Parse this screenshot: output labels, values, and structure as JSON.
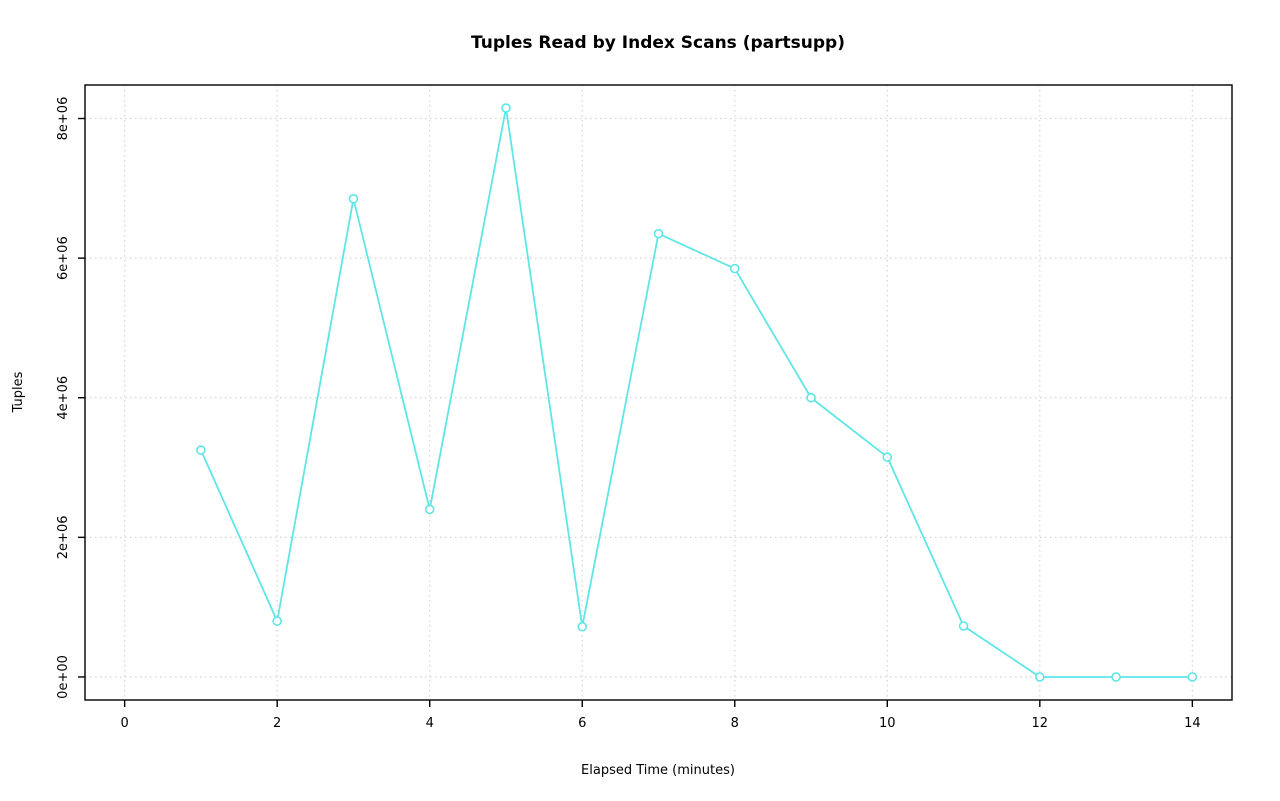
{
  "chart_data": {
    "type": "line",
    "title": "Tuples Read by Index Scans (partsupp)",
    "xlabel": "Elapsed Time (minutes)",
    "ylabel": "Tuples",
    "x": [
      1,
      2,
      3,
      4,
      5,
      6,
      7,
      8,
      9,
      10,
      11,
      12,
      13,
      14
    ],
    "y": [
      3250000,
      800000,
      6850000,
      2400000,
      8150000,
      720000,
      6350000,
      5850000,
      4000000,
      3150000,
      730000,
      0,
      0,
      0
    ],
    "x_ticks": [
      0,
      2,
      4,
      6,
      8,
      10,
      12,
      14
    ],
    "x_tick_labels": [
      "0",
      "2",
      "4",
      "6",
      "8",
      "10",
      "12",
      "14"
    ],
    "y_ticks": [
      0,
      2000000,
      4000000,
      6000000,
      8000000
    ],
    "y_tick_labels": [
      "0e+00",
      "2e+06",
      "4e+06",
      "6e+06",
      "8e+06"
    ],
    "xlim": [
      -0.52,
      14.52
    ],
    "ylim": [
      -330000,
      8480000
    ],
    "grid": true,
    "legend": "none",
    "colors": {
      "line": "#5FE6E6",
      "marker_fill": "#ffffff",
      "grid": "#d3d3d3",
      "axis": "#000000"
    }
  }
}
